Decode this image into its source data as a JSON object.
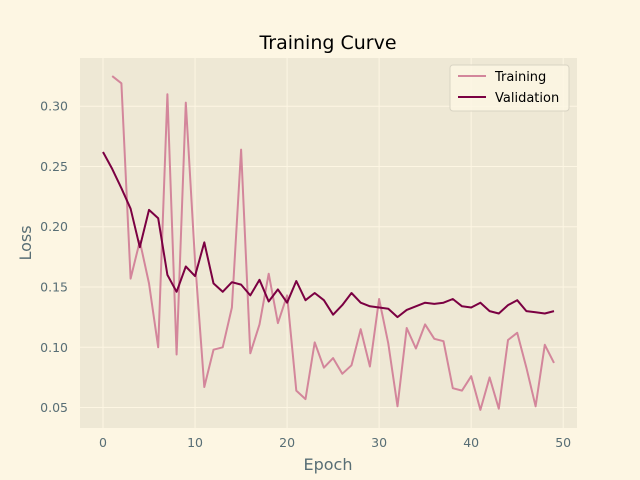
{
  "chart_data": {
    "type": "line",
    "title": "Training Curve",
    "xlabel": "Epoch",
    "ylabel": "Loss",
    "xlim": [
      -2.5,
      51.5
    ],
    "ylim": [
      0.033,
      0.34
    ],
    "xticks": [
      0,
      10,
      20,
      30,
      40,
      50
    ],
    "yticks": [
      0.05,
      0.1,
      0.15,
      0.2,
      0.25,
      0.3
    ],
    "grid": true,
    "legend_position": "top-right",
    "series": [
      {
        "name": "Training",
        "color": "#d3869b",
        "x": [
          1,
          2,
          3,
          4,
          5,
          6,
          7,
          8,
          9,
          10,
          11,
          12,
          13,
          14,
          15,
          16,
          17,
          18,
          19,
          20,
          21,
          22,
          23,
          24,
          25,
          26,
          27,
          28,
          29,
          30,
          31,
          32,
          33,
          34,
          35,
          36,
          37,
          38,
          39,
          40,
          41,
          42,
          43,
          44,
          45,
          46,
          47,
          48,
          49
        ],
        "values": [
          0.325,
          0.319,
          0.157,
          0.188,
          0.153,
          0.1,
          0.31,
          0.094,
          0.303,
          0.172,
          0.067,
          0.098,
          0.1,
          0.133,
          0.264,
          0.095,
          0.119,
          0.161,
          0.12,
          0.143,
          0.064,
          0.057,
          0.104,
          0.083,
          0.091,
          0.078,
          0.085,
          0.115,
          0.084,
          0.14,
          0.103,
          0.051,
          0.116,
          0.099,
          0.119,
          0.107,
          0.105,
          0.066,
          0.064,
          0.076,
          0.048,
          0.075,
          0.049,
          0.106,
          0.112,
          0.083,
          0.051,
          0.102,
          0.087
        ]
      },
      {
        "name": "Validation",
        "color": "#7b0042",
        "x": [
          0,
          1,
          2,
          3,
          4,
          5,
          6,
          7,
          8,
          9,
          10,
          11,
          12,
          13,
          14,
          15,
          16,
          17,
          18,
          19,
          20,
          21,
          22,
          23,
          24,
          25,
          26,
          27,
          28,
          29,
          30,
          31,
          32,
          33,
          34,
          35,
          36,
          37,
          38,
          39,
          40,
          41,
          42,
          43,
          44,
          45,
          46,
          47,
          48,
          49
        ],
        "values": [
          0.262,
          0.248,
          0.232,
          0.215,
          0.183,
          0.214,
          0.207,
          0.16,
          0.146,
          0.167,
          0.159,
          0.187,
          0.153,
          0.146,
          0.154,
          0.152,
          0.143,
          0.156,
          0.138,
          0.148,
          0.137,
          0.155,
          0.139,
          0.145,
          0.139,
          0.127,
          0.135,
          0.145,
          0.137,
          0.134,
          0.133,
          0.132,
          0.125,
          0.131,
          0.134,
          0.137,
          0.136,
          0.137,
          0.14,
          0.134,
          0.133,
          0.137,
          0.13,
          0.128,
          0.135,
          0.139,
          0.13,
          0.129,
          0.128,
          0.13
        ]
      }
    ]
  }
}
